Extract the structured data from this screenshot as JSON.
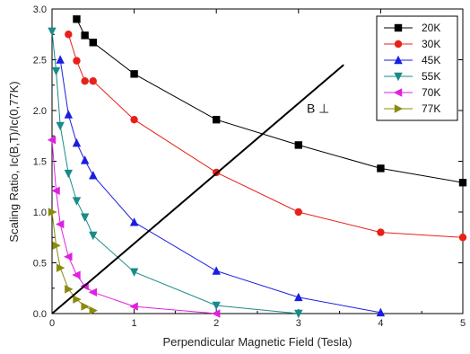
{
  "chart_data": {
    "type": "line",
    "xlabel": "Perpendicular Magnetic Field (Tesla)",
    "ylabel": "Scaling Ratio, Ic(B,T)/Ic(0,77K)",
    "xlim": [
      0,
      5
    ],
    "ylim": [
      0,
      3.0
    ],
    "x_ticks": [
      "0",
      "1",
      "2",
      "3",
      "4",
      "5"
    ],
    "y_ticks": [
      "0.0",
      "0.5",
      "1.0",
      "1.5",
      "2.0",
      "2.5",
      "3.0"
    ],
    "grid": false,
    "legend_position": "top-right",
    "annotations": [
      {
        "text": "B ⊥",
        "x": 3.1,
        "y": 1.98
      }
    ],
    "reference_line": {
      "x": [
        0,
        3.55
      ],
      "y": [
        0,
        2.45
      ],
      "color": "#000000"
    },
    "series": [
      {
        "name": "20K",
        "color": "#000000",
        "marker": "square",
        "x": [
          0.3,
          0.4,
          0.5,
          1.0,
          2.0,
          3.0,
          4.0,
          5.0
        ],
        "y": [
          2.9,
          2.74,
          2.67,
          2.36,
          1.91,
          1.66,
          1.43,
          1.29
        ]
      },
      {
        "name": "30K",
        "color": "#e8201a",
        "marker": "circle",
        "x": [
          0.2,
          0.3,
          0.4,
          0.5,
          1.0,
          2.0,
          3.0,
          4.0,
          5.0
        ],
        "y": [
          2.75,
          2.49,
          2.29,
          2.29,
          1.91,
          1.39,
          1.0,
          0.8,
          0.75
        ]
      },
      {
        "name": "45K",
        "color": "#1a1ee0",
        "marker": "triangle-up",
        "x": [
          0.1,
          0.2,
          0.3,
          0.4,
          0.5,
          1.0,
          2.0,
          3.0,
          4.0
        ],
        "y": [
          2.5,
          1.96,
          1.68,
          1.51,
          1.36,
          0.9,
          0.42,
          0.16,
          0.01
        ]
      },
      {
        "name": "55K",
        "color": "#1a8a8a",
        "marker": "triangle-down",
        "x": [
          0.0,
          0.05,
          0.1,
          0.2,
          0.3,
          0.4,
          0.5,
          1.0,
          2.0,
          3.0
        ],
        "y": [
          2.78,
          2.39,
          1.85,
          1.38,
          1.11,
          0.95,
          0.77,
          0.41,
          0.08,
          0.0
        ]
      },
      {
        "name": "70K",
        "color": "#e020e0",
        "marker": "triangle-left",
        "x": [
          0.0,
          0.05,
          0.1,
          0.2,
          0.3,
          0.4,
          0.5,
          1.0,
          2.0
        ],
        "y": [
          1.71,
          1.21,
          0.88,
          0.56,
          0.38,
          0.27,
          0.21,
          0.07,
          0.0
        ]
      },
      {
        "name": "77K",
        "color": "#8a8a10",
        "marker": "triangle-right",
        "x": [
          0.0,
          0.05,
          0.1,
          0.2,
          0.3,
          0.4,
          0.5
        ],
        "y": [
          1.0,
          0.67,
          0.45,
          0.24,
          0.14,
          0.07,
          0.03
        ]
      }
    ]
  }
}
